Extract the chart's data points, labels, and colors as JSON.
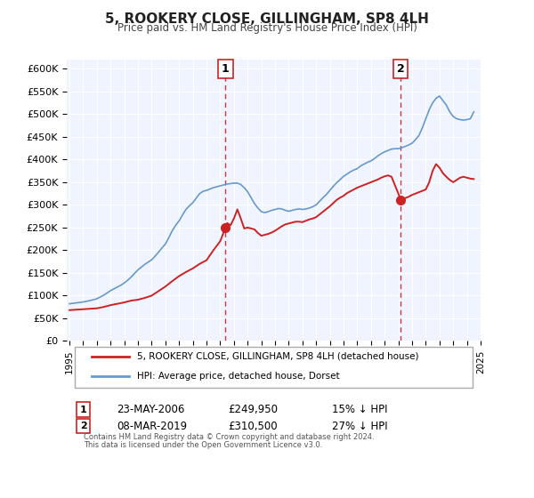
{
  "title": "5, ROOKERY CLOSE, GILLINGHAM, SP8 4LH",
  "subtitle": "Price paid vs. HM Land Registry's House Price Index (HPI)",
  "xlabel": "",
  "ylabel": "",
  "ylim": [
    0,
    600000
  ],
  "yticks": [
    0,
    50000,
    100000,
    150000,
    200000,
    250000,
    300000,
    350000,
    400000,
    450000,
    500000,
    550000,
    600000
  ],
  "ytick_labels": [
    "£0",
    "£50K",
    "£100K",
    "£150K",
    "£200K",
    "£250K",
    "£300K",
    "£350K",
    "£400K",
    "£450K",
    "£500K",
    "£550K",
    "£600K"
  ],
  "background_color": "#f0f4ff",
  "plot_bg_color": "#f0f4ff",
  "grid_color": "#ffffff",
  "hpi_color": "#6699cc",
  "price_color": "#cc2222",
  "sale1_date": "2006-05-23",
  "sale1_price": 249950,
  "sale1_label": "1",
  "sale1_pct": "15% ↓ HPI",
  "sale2_date": "2019-03-08",
  "sale2_price": 310500,
  "sale2_label": "2",
  "sale2_pct": "27% ↓ HPI",
  "legend_label1": "5, ROOKERY CLOSE, GILLINGHAM, SP8 4LH (detached house)",
  "legend_label2": "HPI: Average price, detached house, Dorset",
  "annotation1_date_str": "23-MAY-2006",
  "annotation1_price_str": "£249,950",
  "annotation2_date_str": "08-MAR-2019",
  "annotation2_price_str": "£310,500",
  "footer1": "Contains HM Land Registry data © Crown copyright and database right 2024.",
  "footer2": "This data is licensed under the Open Government Licence v3.0.",
  "hpi_x": [
    1995.0,
    1995.25,
    1995.5,
    1995.75,
    1996.0,
    1996.25,
    1996.5,
    1996.75,
    1997.0,
    1997.25,
    1997.5,
    1997.75,
    1998.0,
    1998.25,
    1998.5,
    1998.75,
    1999.0,
    1999.25,
    1999.5,
    1999.75,
    2000.0,
    2000.25,
    2000.5,
    2000.75,
    2001.0,
    2001.25,
    2001.5,
    2001.75,
    2002.0,
    2002.25,
    2002.5,
    2002.75,
    2003.0,
    2003.25,
    2003.5,
    2003.75,
    2004.0,
    2004.25,
    2004.5,
    2004.75,
    2005.0,
    2005.25,
    2005.5,
    2005.75,
    2006.0,
    2006.25,
    2006.5,
    2006.75,
    2007.0,
    2007.25,
    2007.5,
    2007.75,
    2008.0,
    2008.25,
    2008.5,
    2008.75,
    2009.0,
    2009.25,
    2009.5,
    2009.75,
    2010.0,
    2010.25,
    2010.5,
    2010.75,
    2011.0,
    2011.25,
    2011.5,
    2011.75,
    2012.0,
    2012.25,
    2012.5,
    2012.75,
    2013.0,
    2013.25,
    2013.5,
    2013.75,
    2014.0,
    2014.25,
    2014.5,
    2014.75,
    2015.0,
    2015.25,
    2015.5,
    2015.75,
    2016.0,
    2016.25,
    2016.5,
    2016.75,
    2017.0,
    2017.25,
    2017.5,
    2017.75,
    2018.0,
    2018.25,
    2018.5,
    2018.75,
    2019.0,
    2019.25,
    2019.5,
    2019.75,
    2020.0,
    2020.25,
    2020.5,
    2020.75,
    2021.0,
    2021.25,
    2021.5,
    2021.75,
    2022.0,
    2022.25,
    2022.5,
    2022.75,
    2023.0,
    2023.25,
    2023.5,
    2023.75,
    2024.0,
    2024.25,
    2024.5
  ],
  "hpi_y": [
    82000,
    83000,
    84000,
    85000,
    86000,
    87500,
    89000,
    91000,
    93000,
    97000,
    101000,
    106000,
    111000,
    115000,
    119000,
    123000,
    128000,
    134000,
    141000,
    149000,
    157000,
    163000,
    169000,
    174000,
    179000,
    187000,
    196000,
    205000,
    214000,
    228000,
    243000,
    255000,
    265000,
    278000,
    290000,
    298000,
    305000,
    315000,
    325000,
    330000,
    332000,
    335000,
    338000,
    340000,
    342000,
    344000,
    346000,
    347000,
    348000,
    348000,
    345000,
    338000,
    329000,
    316000,
    303000,
    293000,
    285000,
    283000,
    285000,
    288000,
    290000,
    292000,
    291000,
    288000,
    286000,
    288000,
    290000,
    291000,
    290000,
    291000,
    293000,
    296000,
    300000,
    308000,
    316000,
    323000,
    332000,
    341000,
    349000,
    356000,
    363000,
    368000,
    373000,
    377000,
    380000,
    386000,
    390000,
    394000,
    397000,
    402000,
    408000,
    413000,
    417000,
    420000,
    423000,
    424000,
    424000,
    426000,
    429000,
    432000,
    436000,
    444000,
    453000,
    470000,
    490000,
    510000,
    525000,
    535000,
    540000,
    530000,
    520000,
    505000,
    495000,
    490000,
    488000,
    487000,
    488000,
    490000,
    505000
  ],
  "price_x": [
    1995.0,
    1995.5,
    1996.0,
    1996.5,
    1997.0,
    1997.5,
    1998.0,
    1998.5,
    1999.0,
    1999.5,
    2000.0,
    2000.5,
    2001.0,
    2001.5,
    2002.0,
    2002.5,
    2003.0,
    2003.5,
    2004.0,
    2004.5,
    2005.0,
    2005.5,
    2006.0,
    2006.38,
    2006.5,
    2006.75,
    2007.0,
    2007.25,
    2007.5,
    2007.75,
    2008.0,
    2008.25,
    2008.5,
    2008.75,
    2009.0,
    2009.25,
    2009.5,
    2009.75,
    2010.0,
    2010.25,
    2010.5,
    2010.75,
    2011.0,
    2011.25,
    2011.5,
    2011.75,
    2012.0,
    2012.25,
    2012.5,
    2012.75,
    2013.0,
    2013.25,
    2013.5,
    2013.75,
    2014.0,
    2014.25,
    2014.5,
    2014.75,
    2015.0,
    2015.25,
    2015.5,
    2015.75,
    2016.0,
    2016.25,
    2016.5,
    2016.75,
    2017.0,
    2017.25,
    2017.5,
    2017.75,
    2018.0,
    2018.25,
    2018.5,
    2019.19,
    2019.5,
    2019.75,
    2020.0,
    2020.25,
    2020.5,
    2020.75,
    2021.0,
    2021.25,
    2021.5,
    2021.75,
    2022.0,
    2022.25,
    2022.5,
    2022.75,
    2023.0,
    2023.25,
    2023.5,
    2023.75,
    2024.0,
    2024.25,
    2024.5
  ],
  "price_y": [
    68000,
    69000,
    70000,
    71000,
    72000,
    75000,
    79000,
    82000,
    85000,
    89000,
    91000,
    95000,
    100000,
    110000,
    120000,
    132000,
    143000,
    152000,
    160000,
    170000,
    178000,
    200000,
    220000,
    249950,
    260000,
    255000,
    270000,
    290000,
    270000,
    248000,
    250000,
    248000,
    246000,
    238000,
    232000,
    234000,
    236000,
    239000,
    243000,
    248000,
    253000,
    257000,
    259000,
    261000,
    263000,
    263000,
    262000,
    265000,
    268000,
    270000,
    273000,
    279000,
    285000,
    291000,
    297000,
    304000,
    311000,
    316000,
    320000,
    326000,
    330000,
    334000,
    338000,
    341000,
    344000,
    347000,
    350000,
    353000,
    356000,
    360000,
    363000,
    365000,
    362000,
    310500,
    315000,
    318000,
    322000,
    325000,
    328000,
    331000,
    334000,
    350000,
    375000,
    390000,
    382000,
    370000,
    362000,
    355000,
    350000,
    355000,
    360000,
    362000,
    360000,
    358000,
    357000
  ]
}
